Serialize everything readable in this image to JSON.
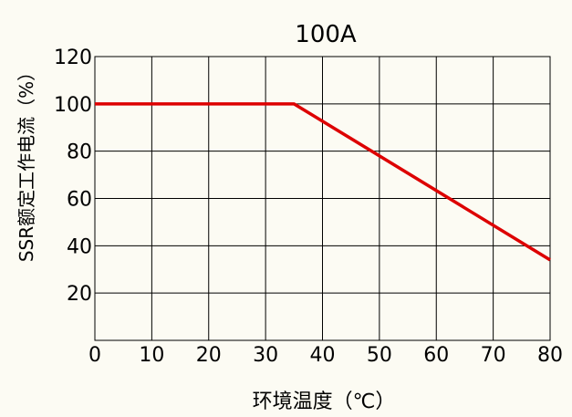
{
  "chart_data": {
    "type": "line",
    "title": "100A",
    "xlabel": "环境温度（℃）",
    "ylabel": "SSR额定工作电流（%）",
    "xlim": [
      0,
      80
    ],
    "ylim": [
      0,
      120
    ],
    "x_ticks": [
      0,
      10,
      20,
      30,
      40,
      50,
      60,
      70,
      80
    ],
    "y_ticks": [
      20,
      40,
      60,
      80,
      100,
      120
    ],
    "grid": true,
    "series": [
      {
        "x": [
          0,
          35,
          80
        ],
        "y": [
          100,
          100,
          34
        ],
        "color": "#dd0000"
      }
    ]
  }
}
